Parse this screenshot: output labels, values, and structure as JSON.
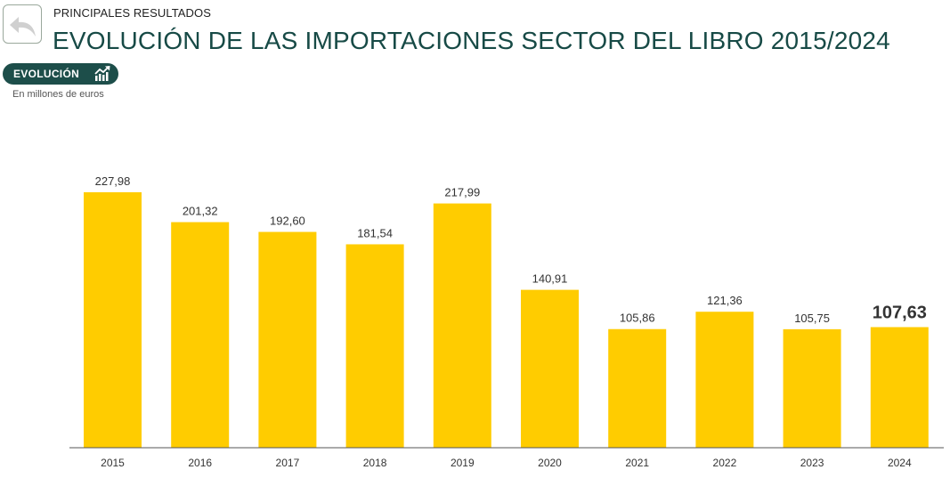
{
  "header": {
    "kicker": "PRINCIPALES RESULTADOS",
    "title": "EVOLUCIÓN DE LAS IMPORTACIONES SECTOR DEL LIBRO 2015/2024",
    "back_icon": "back-arrow-icon"
  },
  "tab": {
    "label": "EVOLUCIÓN",
    "icon": "trend-chart-icon"
  },
  "units_note": "En millones de euros",
  "colors": {
    "bar": "#FFCC00",
    "title": "#174A46",
    "pill": "#1D4E4A"
  },
  "chart_data": {
    "type": "bar",
    "title": "EVOLUCIÓN DE LAS IMPORTACIONES SECTOR DEL LIBRO 2015/2024",
    "ylabel": "En millones de euros",
    "xlabel": "",
    "categories": [
      "2015",
      "2016",
      "2017",
      "2018",
      "2019",
      "2020",
      "2021",
      "2022",
      "2023",
      "2024"
    ],
    "values": [
      227.98,
      201.32,
      192.6,
      181.54,
      217.99,
      140.91,
      105.86,
      121.36,
      105.75,
      107.63
    ],
    "value_labels": [
      "227,98",
      "201,32",
      "192,60",
      "181,54",
      "217,99",
      "140,91",
      "105,86",
      "121,36",
      "105,75",
      "107,63"
    ],
    "highlighted_category": "2024",
    "ylim": [
      0,
      227.98
    ],
    "grid": false,
    "legend": "none"
  }
}
